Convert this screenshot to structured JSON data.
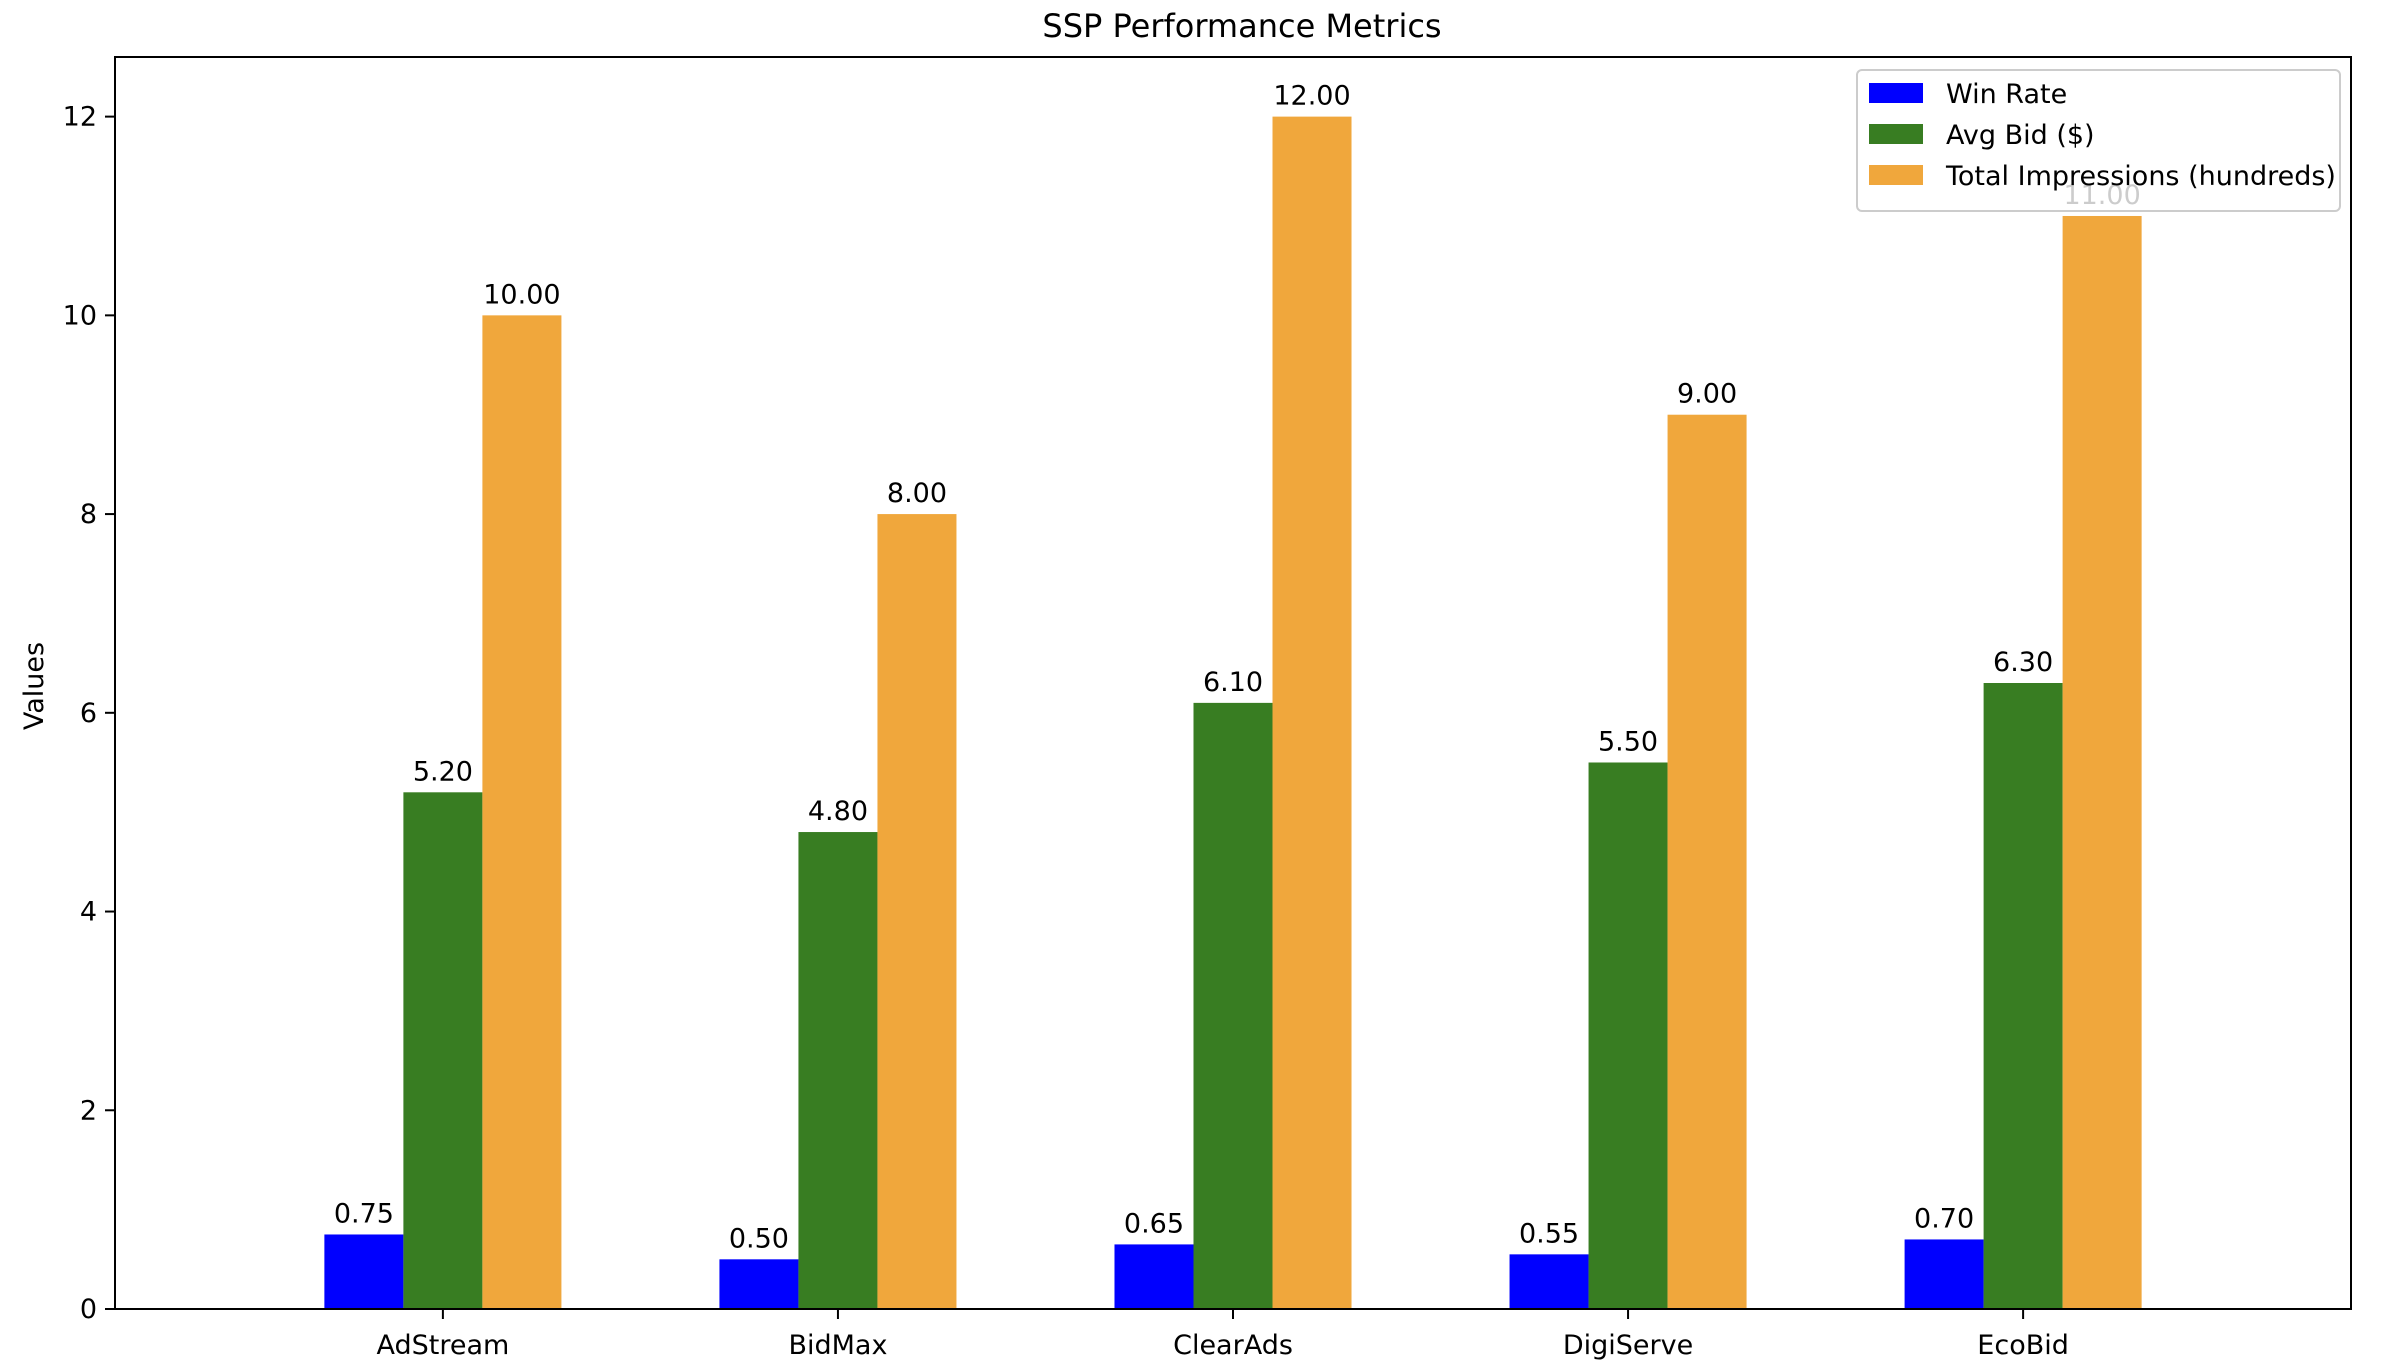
{
  "chart_data": {
    "type": "bar",
    "title": "SSP Performance Metrics",
    "xlabel": "",
    "ylabel": "Values",
    "categories": [
      "AdStream",
      "BidMax",
      "ClearAds",
      "DigiServe",
      "EcoBid"
    ],
    "series": [
      {
        "name": "Win Rate",
        "color": "#0000ff",
        "values": [
          0.75,
          0.5,
          0.65,
          0.55,
          0.7
        ],
        "labels": [
          "0.75",
          "0.50",
          "0.65",
          "0.55",
          "0.70"
        ]
      },
      {
        "name": "Avg Bid ($)",
        "color": "#387d22",
        "values": [
          5.2,
          4.8,
          6.1,
          5.5,
          6.3
        ],
        "labels": [
          "5.20",
          "4.80",
          "6.10",
          "5.50",
          "6.30"
        ]
      },
      {
        "name": "Total Impressions (hundreds)",
        "color": "#f0a73c",
        "values": [
          10,
          8,
          12,
          9,
          11
        ],
        "labels": [
          "10.00",
          "8.00",
          "12.00",
          "9.00",
          "11.00"
        ]
      }
    ],
    "ylim": [
      0,
      12.6
    ],
    "yticks": [
      0,
      2,
      4,
      6,
      8,
      10,
      12
    ],
    "ytick_labels": [
      "0",
      "2",
      "4",
      "6",
      "8",
      "10",
      "12"
    ],
    "grid": false,
    "legend_position": "top-right"
  }
}
